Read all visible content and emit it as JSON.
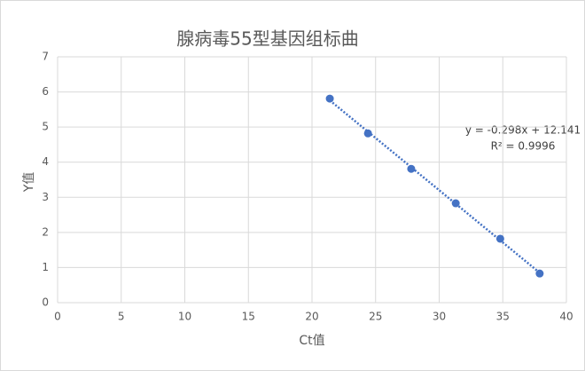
{
  "chart_data": {
    "type": "scatter",
    "title": "腺病毒55型基因组标曲",
    "x_label": "Ct值",
    "y_label": "Y值",
    "series": [
      {
        "name": "Y值",
        "color": "#4472c4",
        "x": [
          21.4,
          24.4,
          27.8,
          31.3,
          34.8,
          37.9
        ],
        "values": [
          5.81,
          4.82,
          3.81,
          2.83,
          1.82,
          0.83
        ]
      }
    ],
    "trendline": true,
    "annotations": [
      "y = -0.298x + 12.141",
      "R² = 0.9996"
    ],
    "xlim": [
      0,
      40
    ],
    "xticks": [
      0,
      5,
      10,
      15,
      20,
      25,
      30,
      35,
      40
    ],
    "ylim": [
      0,
      7
    ],
    "yticks": [
      0,
      1,
      2,
      3,
      4,
      5,
      6,
      7
    ],
    "grid": true
  }
}
